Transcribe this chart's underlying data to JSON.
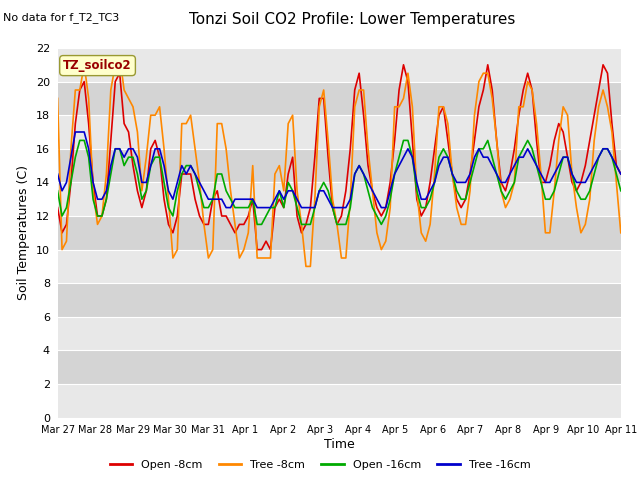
{
  "title": "Tonzi Soil CO2 Profile: Lower Temperatures",
  "no_data_text": "No data for f_T2_TC3",
  "legend_box_label": "TZ_soilco2",
  "ylabel": "Soil Temperatures (C)",
  "xlabel": "Time",
  "ylim": [
    0,
    22
  ],
  "yticks": [
    0,
    2,
    4,
    6,
    8,
    10,
    12,
    14,
    16,
    18,
    20,
    22
  ],
  "xtick_labels": [
    "Mar 27",
    "Mar 28",
    "Mar 29",
    "Mar 30",
    "Mar 31",
    "Apr 1",
    "Apr 2",
    "Apr 3",
    "Apr 4",
    "Apr 5",
    "Apr 6",
    "Apr 7",
    "Apr 8",
    "Apr 9",
    "Apr 10",
    "Apr 11"
  ],
  "series": {
    "open_8cm": {
      "label": "Open -8cm",
      "color": "#dd0000",
      "linewidth": 1.2
    },
    "tree_8cm": {
      "label": "Tree -8cm",
      "color": "#ff8800",
      "linewidth": 1.2
    },
    "open_16cm": {
      "label": "Open -16cm",
      "color": "#00aa00",
      "linewidth": 1.2
    },
    "tree_16cm": {
      "label": "Tree -16cm",
      "color": "#0000cc",
      "linewidth": 1.2
    }
  },
  "open_8cm_y": [
    12.5,
    11.0,
    11.5,
    14.0,
    17.5,
    19.5,
    20.0,
    17.5,
    14.0,
    12.0,
    12.0,
    13.0,
    16.5,
    20.0,
    20.5,
    17.5,
    17.0,
    15.0,
    13.5,
    12.5,
    13.5,
    16.0,
    16.5,
    15.5,
    13.0,
    11.5,
    11.0,
    12.0,
    14.5,
    14.5,
    14.5,
    13.0,
    12.0,
    11.5,
    11.5,
    13.0,
    13.5,
    12.0,
    12.0,
    11.5,
    11.0,
    11.5,
    11.5,
    12.0,
    13.0,
    10.0,
    10.0,
    10.5,
    10.0,
    12.5,
    13.0,
    12.5,
    14.5,
    15.5,
    12.0,
    11.0,
    11.5,
    12.5,
    15.5,
    19.0,
    19.0,
    15.5,
    12.5,
    11.5,
    12.0,
    13.5,
    16.0,
    19.5,
    20.5,
    18.0,
    15.0,
    13.5,
    12.5,
    12.0,
    12.5,
    14.0,
    16.5,
    19.5,
    21.0,
    20.0,
    16.5,
    13.0,
    12.0,
    12.5,
    14.0,
    16.0,
    18.0,
    18.5,
    16.5,
    14.5,
    13.0,
    12.5,
    13.0,
    14.5,
    16.5,
    18.5,
    19.5,
    21.0,
    19.5,
    16.5,
    14.0,
    13.5,
    14.5,
    16.0,
    18.0,
    19.5,
    20.5,
    19.5,
    16.5,
    14.0,
    14.0,
    15.0,
    16.5,
    17.5,
    17.0,
    15.5,
    14.0,
    13.5,
    14.0,
    15.0,
    16.5,
    18.0,
    19.5,
    21.0,
    20.5,
    17.5,
    15.0,
    14.5
  ],
  "tree_8cm_y": [
    19.0,
    10.0,
    10.5,
    16.0,
    19.5,
    19.5,
    21.0,
    19.0,
    13.5,
    11.5,
    12.0,
    14.5,
    19.5,
    21.0,
    21.5,
    19.5,
    19.0,
    18.5,
    17.0,
    13.5,
    15.5,
    18.0,
    18.0,
    18.5,
    16.0,
    13.0,
    9.5,
    10.0,
    17.5,
    17.5,
    18.0,
    16.0,
    14.0,
    11.5,
    9.5,
    10.0,
    17.5,
    17.5,
    16.0,
    13.5,
    11.5,
    9.5,
    10.0,
    11.0,
    15.0,
    9.5,
    9.5,
    9.5,
    9.5,
    14.5,
    15.0,
    13.5,
    17.5,
    18.0,
    13.5,
    11.5,
    9.0,
    9.0,
    13.0,
    18.5,
    19.5,
    16.5,
    13.0,
    11.5,
    9.5,
    9.5,
    13.0,
    18.5,
    19.5,
    19.5,
    16.0,
    13.5,
    11.0,
    10.0,
    10.5,
    12.5,
    18.5,
    18.5,
    19.0,
    20.5,
    18.5,
    13.5,
    11.0,
    10.5,
    11.5,
    14.5,
    18.5,
    18.5,
    17.5,
    14.5,
    12.5,
    11.5,
    11.5,
    13.5,
    18.0,
    20.0,
    20.5,
    20.5,
    19.0,
    16.5,
    13.5,
    12.5,
    13.0,
    14.0,
    18.5,
    18.5,
    20.0,
    19.5,
    17.5,
    14.5,
    11.0,
    11.0,
    13.5,
    16.5,
    18.5,
    18.0,
    14.5,
    12.5,
    11.0,
    11.5,
    13.0,
    16.5,
    18.5,
    19.5,
    18.5,
    17.0,
    14.0,
    11.0
  ],
  "open_16cm_y": [
    13.5,
    12.0,
    12.5,
    14.0,
    15.5,
    16.5,
    16.5,
    15.5,
    13.0,
    12.0,
    12.0,
    13.0,
    14.5,
    16.0,
    16.0,
    15.0,
    15.5,
    15.5,
    14.5,
    13.0,
    13.5,
    15.0,
    15.5,
    15.5,
    14.0,
    12.5,
    12.0,
    13.5,
    14.5,
    15.0,
    15.0,
    14.5,
    13.5,
    12.5,
    12.5,
    13.0,
    14.5,
    14.5,
    13.5,
    13.0,
    12.5,
    12.5,
    12.5,
    12.5,
    13.0,
    11.5,
    11.5,
    12.0,
    12.5,
    12.5,
    13.5,
    12.5,
    14.0,
    13.5,
    12.5,
    11.5,
    11.5,
    11.5,
    12.5,
    13.5,
    14.0,
    13.5,
    12.5,
    11.5,
    11.5,
    11.5,
    12.5,
    14.5,
    15.0,
    14.5,
    13.5,
    12.5,
    12.0,
    11.5,
    12.0,
    13.0,
    14.5,
    15.5,
    16.5,
    16.5,
    15.5,
    13.5,
    12.5,
    12.5,
    13.0,
    14.0,
    15.5,
    16.0,
    15.5,
    14.5,
    13.5,
    13.0,
    13.0,
    14.0,
    15.0,
    16.0,
    16.0,
    16.5,
    15.5,
    14.5,
    13.5,
    13.0,
    13.5,
    14.0,
    15.5,
    16.0,
    16.5,
    16.0,
    15.0,
    14.0,
    13.0,
    13.0,
    13.5,
    14.5,
    15.5,
    15.5,
    14.5,
    13.5,
    13.0,
    13.0,
    13.5,
    14.5,
    15.5,
    16.0,
    16.0,
    15.5,
    14.5,
    13.5
  ],
  "tree_16cm_y": [
    14.5,
    13.5,
    14.0,
    15.5,
    17.0,
    17.0,
    17.0,
    16.0,
    14.0,
    13.0,
    13.0,
    13.5,
    15.0,
    16.0,
    16.0,
    15.5,
    16.0,
    16.0,
    15.5,
    14.0,
    14.0,
    15.0,
    16.0,
    16.0,
    15.0,
    13.5,
    13.0,
    14.0,
    15.0,
    14.5,
    15.0,
    14.5,
    14.0,
    13.5,
    13.0,
    13.0,
    13.0,
    13.0,
    12.5,
    12.5,
    13.0,
    13.0,
    13.0,
    13.0,
    13.0,
    12.5,
    12.5,
    12.5,
    12.5,
    13.0,
    13.5,
    13.0,
    13.5,
    13.5,
    13.0,
    12.5,
    12.5,
    12.5,
    12.5,
    13.5,
    13.5,
    13.0,
    12.5,
    12.5,
    12.5,
    12.5,
    13.0,
    14.5,
    15.0,
    14.5,
    14.0,
    13.5,
    13.0,
    12.5,
    12.5,
    13.5,
    14.5,
    15.0,
    15.5,
    16.0,
    15.5,
    14.0,
    13.0,
    13.0,
    13.5,
    14.0,
    15.0,
    15.5,
    15.5,
    14.5,
    14.0,
    14.0,
    14.0,
    14.5,
    15.5,
    16.0,
    15.5,
    15.5,
    15.0,
    14.5,
    14.0,
    14.0,
    14.5,
    15.0,
    15.5,
    15.5,
    16.0,
    15.5,
    15.0,
    14.5,
    14.0,
    14.0,
    14.5,
    15.0,
    15.5,
    15.5,
    14.5,
    14.0,
    14.0,
    14.0,
    14.5,
    15.0,
    15.5,
    16.0,
    16.0,
    15.5,
    15.0,
    14.5
  ]
}
